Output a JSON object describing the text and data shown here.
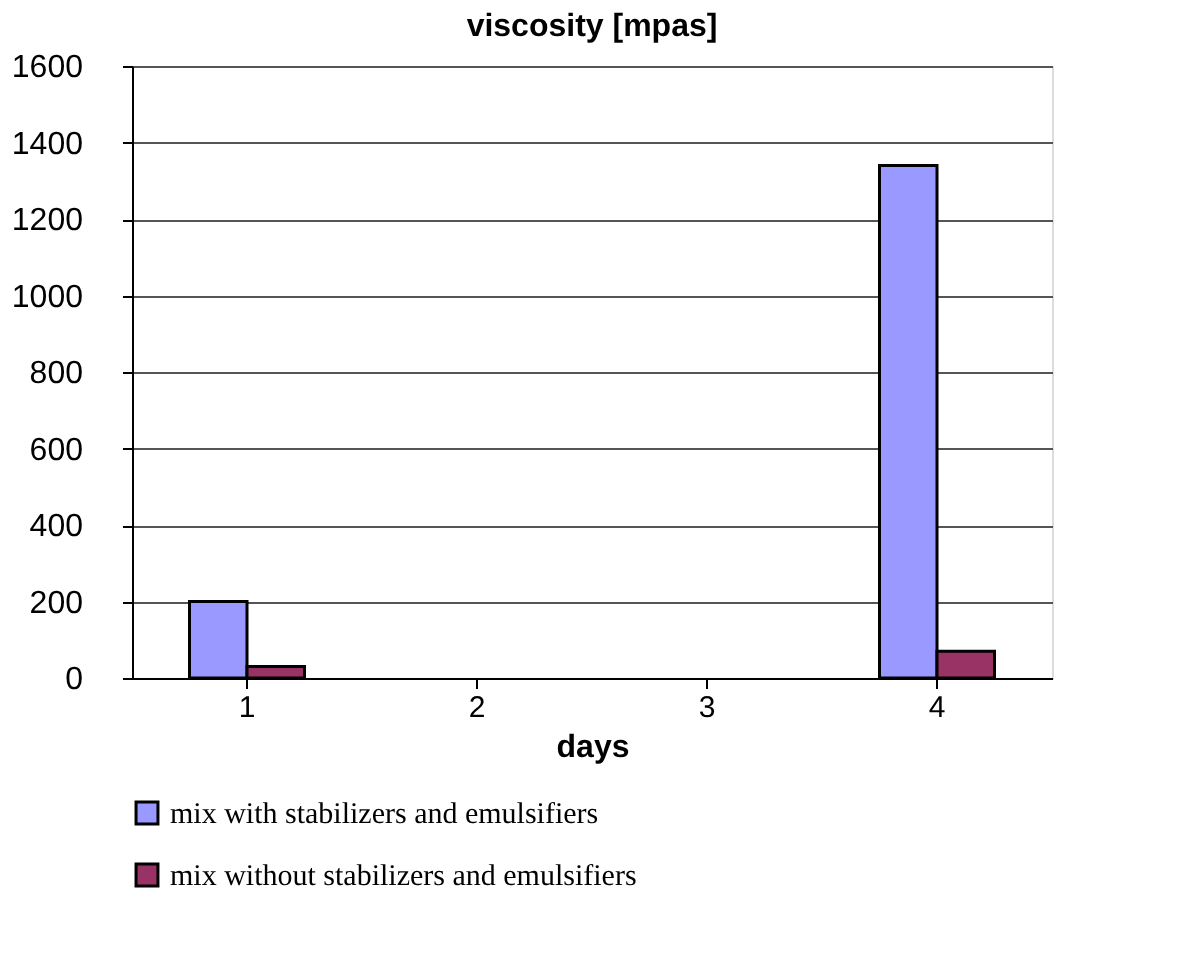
{
  "chart_data": {
    "type": "bar",
    "title": "viscosity [mpas]",
    "xlabel": "days",
    "categories": [
      "1",
      "2",
      "3",
      "4"
    ],
    "series": [
      {
        "name": "mix with stabilizers and emulsifiers",
        "color": "#9999ff",
        "values": [
          200,
          null,
          null,
          1340
        ]
      },
      {
        "name": "mix without stabilizers and emulsifiers",
        "color": "#993366",
        "values": [
          30,
          null,
          null,
          70
        ]
      }
    ],
    "ylim": [
      0,
      1600
    ],
    "yticks": [
      0,
      200,
      400,
      600,
      800,
      1000,
      1200,
      1400,
      1600
    ],
    "grid": "y",
    "legend": "bottom"
  }
}
